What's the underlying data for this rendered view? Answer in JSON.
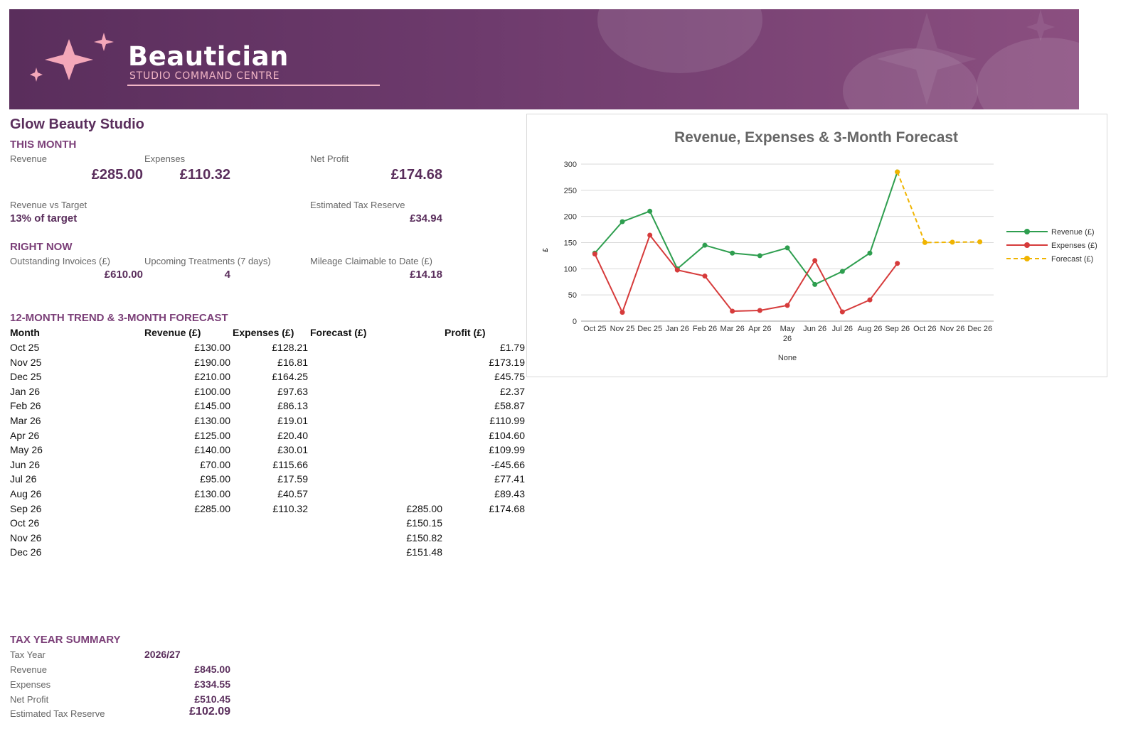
{
  "header": {
    "brand_title": "Beautician",
    "brand_subtitle": "STUDIO COMMAND CENTRE",
    "colors": {
      "primary": "#5a2e5c",
      "accent": "#f2b6c6"
    }
  },
  "studio_name": "Glow Beauty Studio",
  "this_month": {
    "heading": "THIS MONTH",
    "revenue_label": "Revenue",
    "revenue_value": "£285.00",
    "expenses_label": "Expenses",
    "expenses_value": "£110.32",
    "net_profit_label": "Net Profit",
    "net_profit_value": "£174.68",
    "rev_target_label": "Revenue vs Target",
    "rev_target_value": "13% of target",
    "tax_reserve_label": "Estimated Tax Reserve",
    "tax_reserve_value": "£34.94"
  },
  "right_now": {
    "heading": "RIGHT NOW",
    "invoices_label": "Outstanding Invoices (£)",
    "invoices_value": "£610.00",
    "treatments_label": "Upcoming Treatments (7 days)",
    "treatments_value": "4",
    "mileage_label": "Mileage Claimable to Date (£)",
    "mileage_value": "£14.18"
  },
  "trend": {
    "heading": "12-MONTH TREND & 3-MONTH FORECAST",
    "columns": [
      "Month",
      "Revenue (£)",
      "Expenses (£)",
      "Forecast (£)",
      "Profit (£)"
    ],
    "rows": [
      [
        "Oct 25",
        "£130.00",
        "£128.21",
        "",
        "£1.79"
      ],
      [
        "Nov 25",
        "£190.00",
        "£16.81",
        "",
        "£173.19"
      ],
      [
        "Dec 25",
        "£210.00",
        "£164.25",
        "",
        "£45.75"
      ],
      [
        "Jan 26",
        "£100.00",
        "£97.63",
        "",
        "£2.37"
      ],
      [
        "Feb 26",
        "£145.00",
        "£86.13",
        "",
        "£58.87"
      ],
      [
        "Mar 26",
        "£130.00",
        "£19.01",
        "",
        "£110.99"
      ],
      [
        "Apr 26",
        "£125.00",
        "£20.40",
        "",
        "£104.60"
      ],
      [
        "May 26",
        "£140.00",
        "£30.01",
        "",
        "£109.99"
      ],
      [
        "Jun 26",
        "£70.00",
        "£115.66",
        "",
        "-£45.66"
      ],
      [
        "Jul 26",
        "£95.00",
        "£17.59",
        "",
        "£77.41"
      ],
      [
        "Aug 26",
        "£130.00",
        "£40.57",
        "",
        "£89.43"
      ],
      [
        "Sep 26",
        "£285.00",
        "£110.32",
        "£285.00",
        "£174.68"
      ],
      [
        "Oct 26",
        "",
        "",
        "£150.15",
        ""
      ],
      [
        "Nov 26",
        "",
        "",
        "£150.82",
        ""
      ],
      [
        "Dec 26",
        "",
        "",
        "£151.48",
        ""
      ]
    ]
  },
  "tax_year": {
    "heading": "TAX YEAR SUMMARY",
    "tax_year_label": "Tax Year",
    "tax_year_value": "2026/27",
    "revenue_label": "Revenue",
    "revenue_value": "£845.00",
    "expenses_label": "Expenses",
    "expenses_value": "£334.55",
    "net_profit_label": "Net Profit",
    "net_profit_value": "£510.45",
    "tax_reserve_label": "Estimated Tax Reserve",
    "tax_reserve_value": "£102.09"
  },
  "chart_data": {
    "type": "line",
    "title": "Revenue, Expenses & 3-Month Forecast",
    "xlabel": "None",
    "ylabel": "£",
    "ylim": [
      0,
      300
    ],
    "yticks": [
      0,
      50,
      100,
      150,
      200,
      250,
      300
    ],
    "grid": true,
    "legend_position": "right",
    "categories": [
      "Oct 25",
      "Nov 25",
      "Dec 25",
      "Jan 26",
      "Feb 26",
      "Mar 26",
      "Apr 26",
      "May 26",
      "Jun 26",
      "Jul 26",
      "Aug 26",
      "Sep 26",
      "Oct 26",
      "Nov 26",
      "Dec 26"
    ],
    "series": [
      {
        "name": "Revenue (£)",
        "color": "#2e9e4f",
        "dashed": false,
        "values": [
          130,
          190,
          210,
          100,
          145,
          130,
          125,
          140,
          70,
          95,
          130,
          285,
          null,
          null,
          null
        ]
      },
      {
        "name": "Expenses (£)",
        "color": "#d63b3b",
        "dashed": false,
        "values": [
          128.21,
          16.81,
          164.25,
          97.63,
          86.13,
          19.01,
          20.4,
          30.01,
          115.66,
          17.59,
          40.57,
          110.32,
          null,
          null,
          null
        ]
      },
      {
        "name": "Forecast (£)",
        "color": "#f0b400",
        "dashed": true,
        "values": [
          null,
          null,
          null,
          null,
          null,
          null,
          null,
          null,
          null,
          null,
          null,
          285,
          150.15,
          150.82,
          151.48
        ]
      }
    ]
  }
}
